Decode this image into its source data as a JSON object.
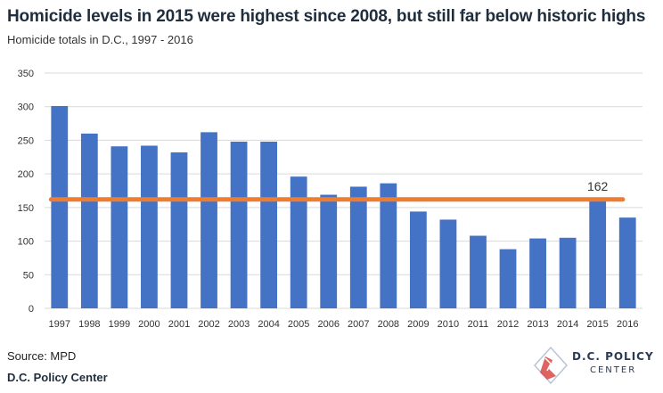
{
  "header": {
    "title": "Homicide levels in 2015 were highest since 2008, but still far below historic highs",
    "subtitle": "Homicide totals in D.C., 1997 - 2016"
  },
  "footer": {
    "source": "Source: MPD",
    "publisher": "D.C. Policy Center"
  },
  "logo": {
    "name": "D.C. POLICY",
    "sub": "CENTER",
    "icon": "dc-map-icon"
  },
  "colors": {
    "bar": "#4472c4",
    "reference_line": "#ed7d31",
    "grid": "#d9d9d9",
    "axis_text": "#333333"
  },
  "chart_data": {
    "type": "bar",
    "title": "Homicide levels in 2015 were highest since 2008, but still far below historic highs",
    "subtitle": "Homicide totals in D.C., 1997 - 2016",
    "xlabel": "",
    "ylabel": "",
    "categories": [
      "1997",
      "1998",
      "1999",
      "2000",
      "2001",
      "2002",
      "2003",
      "2004",
      "2005",
      "2006",
      "2007",
      "2008",
      "2009",
      "2010",
      "2011",
      "2012",
      "2013",
      "2014",
      "2015",
      "2016"
    ],
    "values": [
      301,
      260,
      241,
      242,
      232,
      262,
      248,
      248,
      196,
      169,
      181,
      186,
      144,
      132,
      108,
      88,
      104,
      105,
      162,
      135
    ],
    "ylim": [
      0,
      350
    ],
    "yticks": [
      0,
      50,
      100,
      150,
      200,
      250,
      300,
      350
    ],
    "grid": true,
    "legend": "none",
    "reference_line": {
      "value": 162,
      "label": "162"
    }
  }
}
